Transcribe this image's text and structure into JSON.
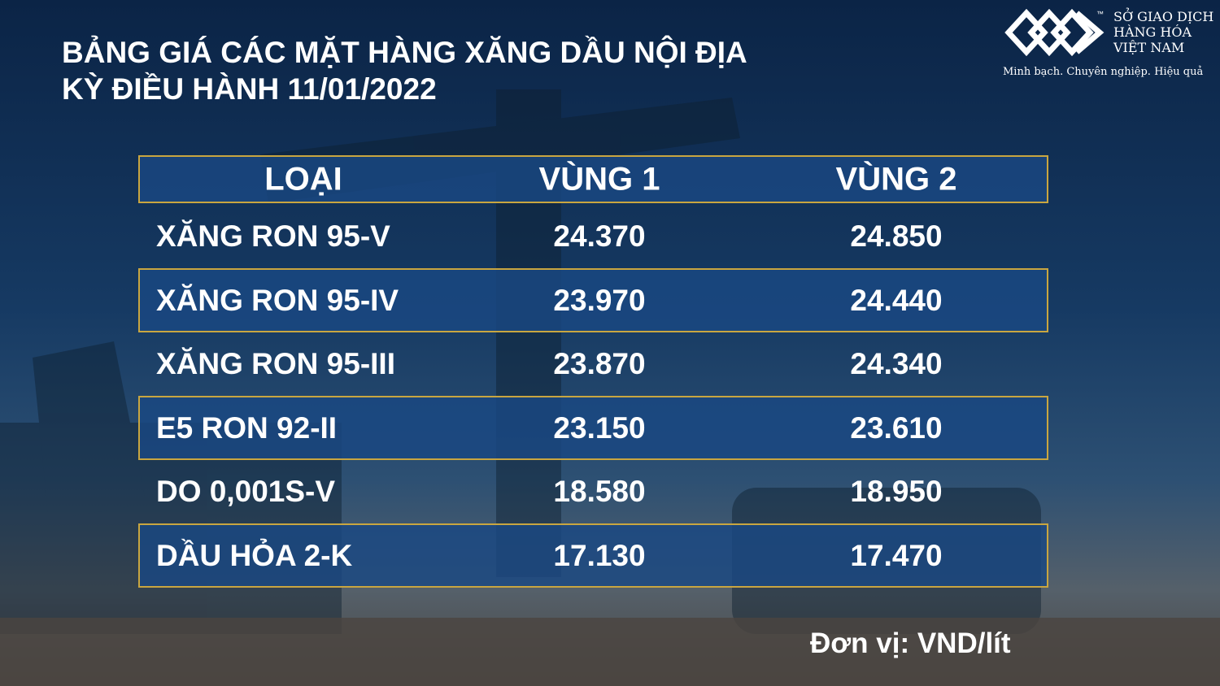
{
  "header": {
    "title_lines": [
      "BẢNG GIÁ CÁC MẶT HÀNG XĂNG DẦU NỘI ĐỊA",
      "KỲ ĐIỀU HÀNH 11/01/2022"
    ]
  },
  "logo": {
    "trademark": "™",
    "name_lines": [
      "SỞ GIAO DỊCH",
      "HÀNG HÓA",
      "VIỆT NAM"
    ],
    "slogan": "Minh bạch. Chuyên nghiệp. Hiệu quả"
  },
  "table": {
    "columns": [
      "LOẠI",
      "VÙNG 1",
      "VÙNG 2"
    ],
    "rows": [
      [
        "XĂNG RON 95-V",
        "24.370",
        "24.850"
      ],
      [
        "XĂNG RON 95-IV",
        "23.970",
        "24.440"
      ],
      [
        "XĂNG RON 95-III",
        "23.870",
        "24.340"
      ],
      [
        "E5 RON 92-II",
        "23.150",
        "23.610"
      ],
      [
        "DO 0,001S-V",
        "18.580",
        "18.950"
      ],
      [
        "DẦU HỎA 2-K",
        "17.130",
        "17.470"
      ]
    ]
  },
  "footer": {
    "unit_note": "Đơn vị: VND/lít"
  }
}
